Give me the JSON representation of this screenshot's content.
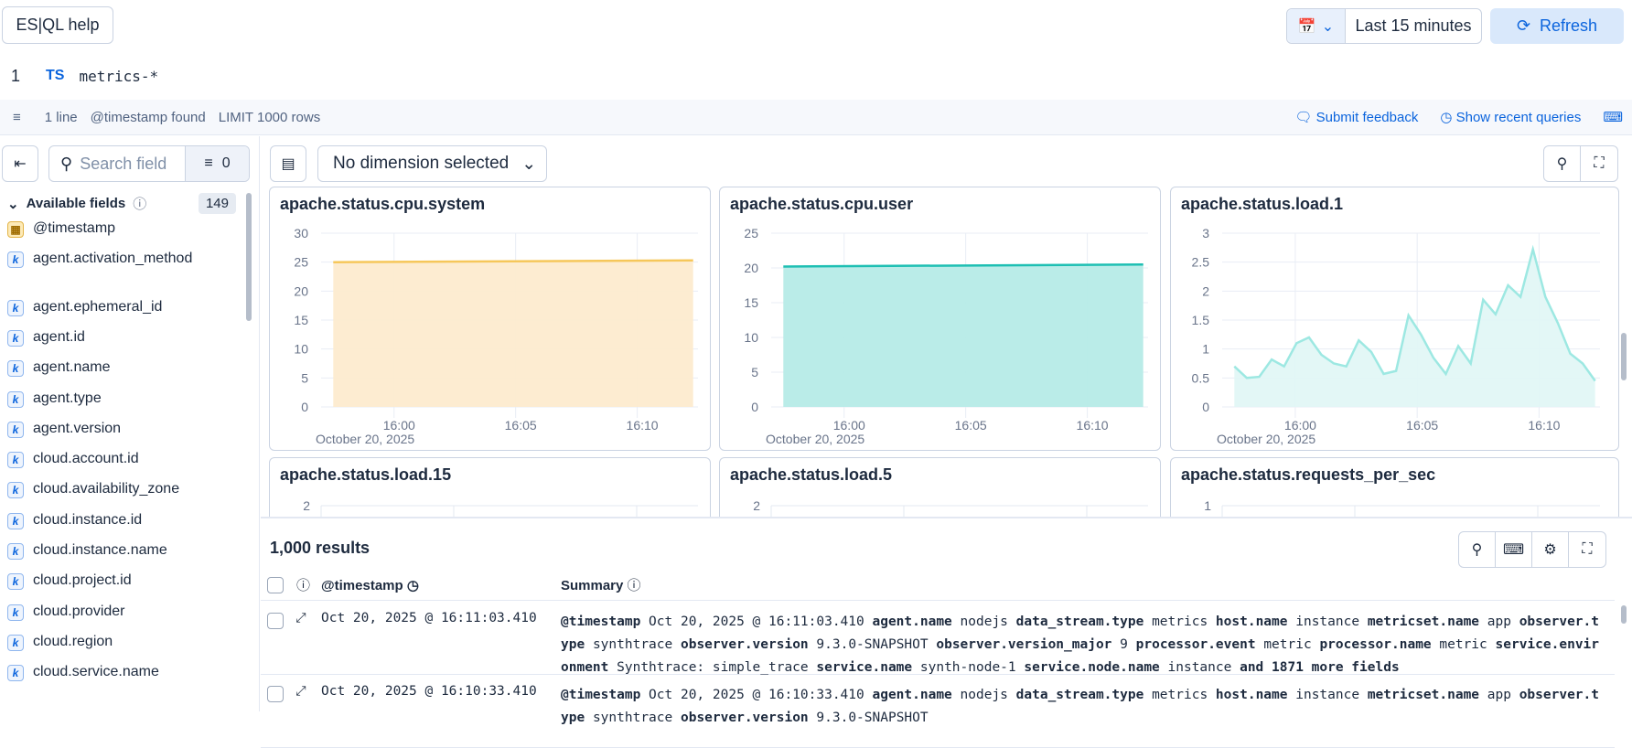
{
  "header": {
    "help_label": "ES|QL help",
    "date_range": "Last 15 minutes",
    "refresh_label": "Refresh"
  },
  "editor": {
    "line_number": "1",
    "keyword": "TS",
    "query": "metrics-*"
  },
  "footer": {
    "lines": "1 line",
    "timestamp": "@timestamp found",
    "limit": "LIMIT 1000 rows",
    "feedback": "Submit feedback",
    "recent": "Show recent queries"
  },
  "sidebar": {
    "search_placeholder": "Search field",
    "filter_count": "0",
    "available_label": "Available fields",
    "available_count": "149",
    "fields": [
      {
        "name": "@timestamp",
        "type": "date"
      },
      {
        "name": "agent.activation_method",
        "type": "keyword"
      },
      {
        "name": "agent.ephemeral_id",
        "type": "keyword"
      },
      {
        "name": "agent.id",
        "type": "keyword"
      },
      {
        "name": "agent.name",
        "type": "keyword"
      },
      {
        "name": "agent.type",
        "type": "keyword"
      },
      {
        "name": "agent.version",
        "type": "keyword"
      },
      {
        "name": "cloud.account.id",
        "type": "keyword"
      },
      {
        "name": "cloud.availability_zone",
        "type": "keyword"
      },
      {
        "name": "cloud.instance.id",
        "type": "keyword"
      },
      {
        "name": "cloud.instance.name",
        "type": "keyword"
      },
      {
        "name": "cloud.project.id",
        "type": "keyword"
      },
      {
        "name": "cloud.provider",
        "type": "keyword"
      },
      {
        "name": "cloud.region",
        "type": "keyword"
      },
      {
        "name": "cloud.service.name",
        "type": "keyword"
      }
    ]
  },
  "toolbar": {
    "dimension": "No dimension selected"
  },
  "chart_data": [
    {
      "type": "area",
      "title": "apache.status.cpu.system",
      "color": "#f6c75a",
      "fill": "#fdebcf",
      "ylim": [
        0,
        30
      ],
      "yticks": [
        0,
        5,
        10,
        15,
        20,
        25,
        30
      ],
      "xticks": [
        "16:00",
        "16:05",
        "16:10"
      ],
      "xsublabel": "October 20, 2025",
      "x": [
        "15:57",
        "16:12"
      ],
      "y": [
        25,
        25.3
      ]
    },
    {
      "type": "area",
      "title": "apache.status.cpu.user",
      "color": "#1ebfb3",
      "fill": "#b6ebe7",
      "ylim": [
        0,
        25
      ],
      "yticks": [
        0,
        5,
        10,
        15,
        20,
        25
      ],
      "xticks": [
        "16:00",
        "16:05",
        "16:10"
      ],
      "xsublabel": "October 20, 2025",
      "x": [
        "15:57",
        "16:12"
      ],
      "y": [
        20.2,
        20.5
      ]
    },
    {
      "type": "area",
      "title": "apache.status.load.1",
      "color": "#9de8e2",
      "fill": "#e2f7f5",
      "ylim": [
        0,
        3
      ],
      "yticks": [
        0,
        0.5,
        1,
        1.5,
        2,
        2.5,
        3
      ],
      "xticks": [
        "16:00",
        "16:05",
        "16:10"
      ],
      "xsublabel": "October 20, 2025",
      "y": [
        0.7,
        0.5,
        0.52,
        0.82,
        0.7,
        1.1,
        1.2,
        0.9,
        0.75,
        0.7,
        1.15,
        0.95,
        0.57,
        0.62,
        1.58,
        1.25,
        0.85,
        0.57,
        1.05,
        0.75,
        1.85,
        1.6,
        2.1,
        1.9,
        2.72,
        1.9,
        1.45,
        0.92,
        0.75,
        0.45
      ]
    },
    {
      "type": "area",
      "title": "apache.status.load.15",
      "yticks": [
        2
      ]
    },
    {
      "type": "area",
      "title": "apache.status.load.5",
      "yticks": [
        2
      ]
    },
    {
      "type": "area",
      "title": "apache.status.requests_per_sec",
      "yticks": [
        1
      ]
    }
  ],
  "results": {
    "count": "1,000 results",
    "col_timestamp": "@timestamp",
    "col_summary": "Summary",
    "rows": [
      {
        "timestamp": "Oct 20, 2025 @ 16:11:03.410",
        "summary": [
          [
            "@timestamp",
            "Oct 20, 2025 @ 16:11:03.410"
          ],
          [
            "agent.name",
            "nodejs"
          ],
          [
            "data_stream.type",
            "metrics"
          ],
          [
            "host.name",
            "instance"
          ],
          [
            "metricset.name",
            "app"
          ],
          [
            "observer.type",
            "synthtrace"
          ],
          [
            "observer.version",
            "9.3.0-SNAPSHOT"
          ],
          [
            "observer.version_major",
            "9"
          ],
          [
            "processor.event",
            "metric"
          ],
          [
            "processor.name",
            "metric"
          ],
          [
            "service.environment",
            "Synthtrace: simple_trace"
          ],
          [
            "service.name",
            "synth-node-1"
          ],
          [
            "service.node.name",
            "instance"
          ],
          [
            "and 1871 more fields",
            ""
          ]
        ]
      },
      {
        "timestamp": "Oct 20, 2025 @ 16:10:33.410",
        "summary": [
          [
            "@timestamp",
            "Oct 20, 2025 @ 16:10:33.410"
          ],
          [
            "agent.name",
            "nodejs"
          ],
          [
            "data_stream.type",
            "metrics"
          ],
          [
            "host.name",
            "instance"
          ],
          [
            "metricset.name",
            "app"
          ],
          [
            "observer.type",
            "synthtrace"
          ],
          [
            "observer.version",
            "9.3.0-SNAPSHOT"
          ]
        ]
      }
    ]
  }
}
